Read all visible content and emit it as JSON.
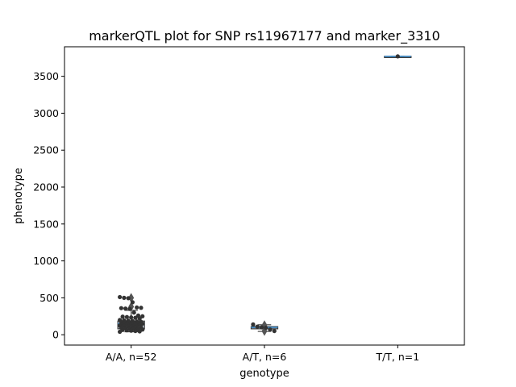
{
  "chart_data": {
    "type": "scatter",
    "title": "markerQTL plot for SNP rs11967177 and marker_3310",
    "xlabel": "genotype",
    "ylabel": "phenotype",
    "categories": [
      "A/A, n=52",
      "A/T, n=6",
      "T/T, n=1"
    ],
    "ylim": [
      -140,
      3900
    ],
    "yticks": [
      0,
      500,
      1000,
      1500,
      2000,
      2500,
      3000,
      3500
    ],
    "grid": false,
    "legend": "none",
    "colors": {
      "points": "#333333",
      "box_edge": "#3a3a3a",
      "median": "#3b87c4",
      "axis": "#000000"
    },
    "groups": [
      {
        "category": "A/A, n=52",
        "box": {
          "q1": 80,
          "median": 150,
          "q3": 185,
          "whisker_low": 40,
          "whisker_high": 330
        },
        "outliers": [
          500,
          380
        ],
        "points": [
          510,
          500,
          495,
          440,
          370,
          365,
          360,
          355,
          350,
          300,
          260,
          250,
          245,
          240,
          235,
          230,
          220,
          200,
          195,
          190,
          185,
          180,
          175,
          170,
          168,
          165,
          160,
          155,
          150,
          148,
          145,
          140,
          135,
          130,
          125,
          120,
          115,
          110,
          105,
          100,
          95,
          90,
          85,
          80,
          75,
          70,
          65,
          60,
          55,
          50,
          45,
          40
        ]
      },
      {
        "category": "A/T, n=6",
        "box": {
          "q1": 80,
          "median": 100,
          "q3": 110,
          "whisker_low": 45,
          "whisker_high": 135
        },
        "outliers": [
          130,
          50
        ],
        "points": [
          140,
          110,
          100,
          95,
          70,
          50
        ]
      },
      {
        "category": "T/T, n=1",
        "box": {
          "q1": 3770,
          "median": 3770,
          "q3": 3770,
          "whisker_low": 3770,
          "whisker_high": 3770
        },
        "outliers": [],
        "points": [
          3770
        ]
      }
    ]
  }
}
